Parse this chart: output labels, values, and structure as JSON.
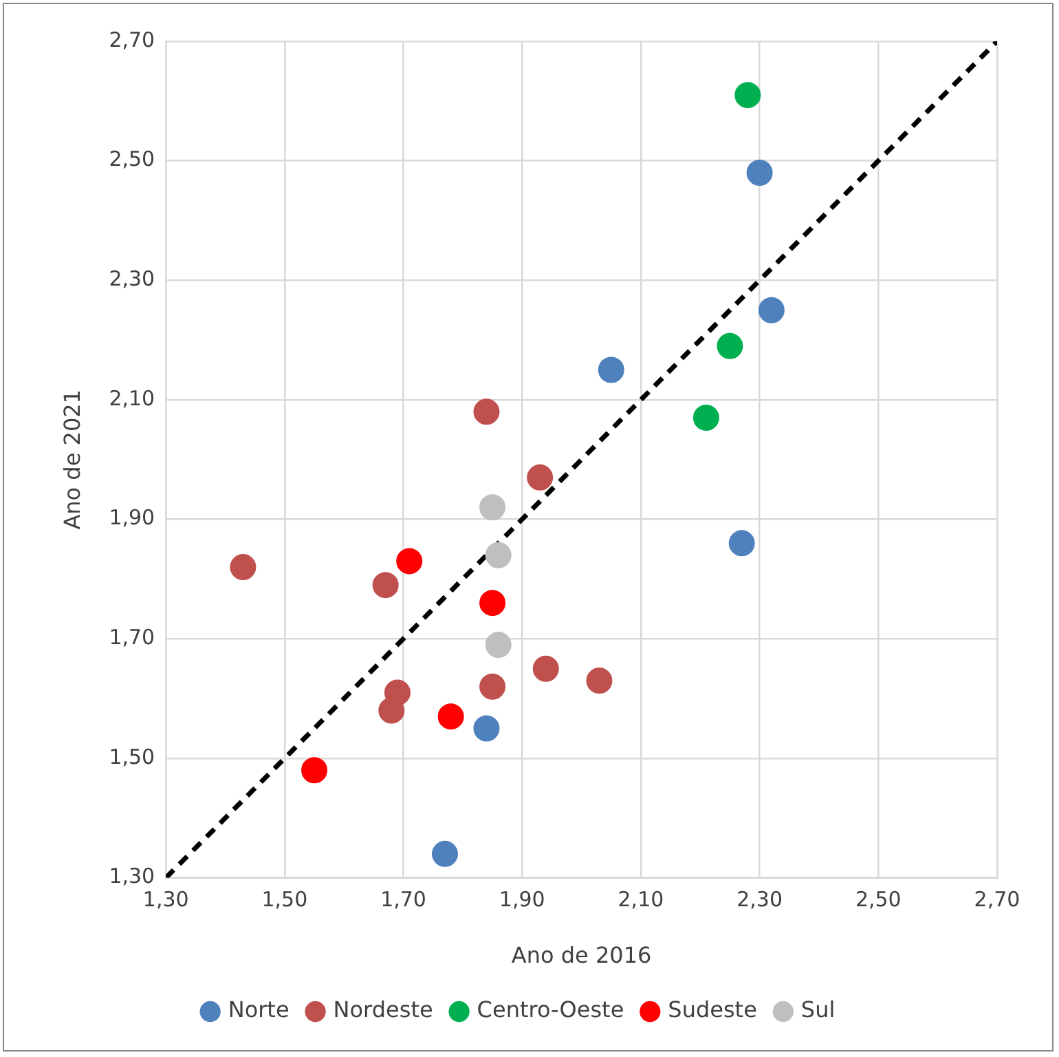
{
  "chart_data": {
    "type": "scatter",
    "xlabel": "Ano de 2016",
    "ylabel": "Ano de 2021",
    "xlim": [
      1.3,
      2.7
    ],
    "ylim": [
      1.3,
      2.7
    ],
    "xticks": [
      {
        "value": 1.3,
        "label": "1,30"
      },
      {
        "value": 1.5,
        "label": "1,50"
      },
      {
        "value": 1.7,
        "label": "1,70"
      },
      {
        "value": 1.9,
        "label": "1,90"
      },
      {
        "value": 2.1,
        "label": "2,10"
      },
      {
        "value": 2.3,
        "label": "2,30"
      },
      {
        "value": 2.5,
        "label": "2,50"
      },
      {
        "value": 2.7,
        "label": "2,70"
      }
    ],
    "yticks": [
      {
        "value": 1.3,
        "label": "1,30"
      },
      {
        "value": 1.5,
        "label": "1,50"
      },
      {
        "value": 1.7,
        "label": "1,70"
      },
      {
        "value": 1.9,
        "label": "1,90"
      },
      {
        "value": 2.1,
        "label": "2,10"
      },
      {
        "value": 2.3,
        "label": "2,30"
      },
      {
        "value": 2.5,
        "label": "2,50"
      },
      {
        "value": 2.7,
        "label": "2,70"
      }
    ],
    "grid": true,
    "legend": "bottom",
    "marker": "circle",
    "series": [
      {
        "name": "Norte",
        "color": "#4f81bd",
        "x": [
          2.3,
          2.32,
          2.05,
          2.27,
          1.84,
          1.77
        ],
        "values": [
          2.48,
          2.25,
          2.15,
          1.86,
          1.55,
          1.34
        ]
      },
      {
        "name": "Nordeste",
        "color": "#c0504d",
        "x": [
          1.43,
          1.84,
          1.93,
          1.67,
          1.69,
          1.68,
          1.85,
          1.94,
          2.03
        ],
        "values": [
          1.82,
          2.08,
          1.97,
          1.79,
          1.61,
          1.58,
          1.62,
          1.65,
          1.63
        ]
      },
      {
        "name": "Centro-Oeste",
        "color": "#00b050",
        "x": [
          2.28,
          2.25,
          2.21
        ],
        "values": [
          2.61,
          2.19,
          2.07
        ]
      },
      {
        "name": "Sudeste",
        "color": "#ff0000",
        "x": [
          1.71,
          1.85,
          1.78,
          1.55
        ],
        "values": [
          1.83,
          1.76,
          1.57,
          1.48
        ]
      },
      {
        "name": "Sul",
        "color": "#bfbfbf",
        "x": [
          1.85,
          1.86,
          1.86
        ],
        "values": [
          1.92,
          1.84,
          1.69
        ]
      },
      {
        "type": "line",
        "color": "#000000",
        "line_style": "dashed",
        "marker": "none",
        "x": [
          1.3,
          2.7
        ],
        "values": [
          1.3,
          2.7
        ]
      }
    ]
  }
}
